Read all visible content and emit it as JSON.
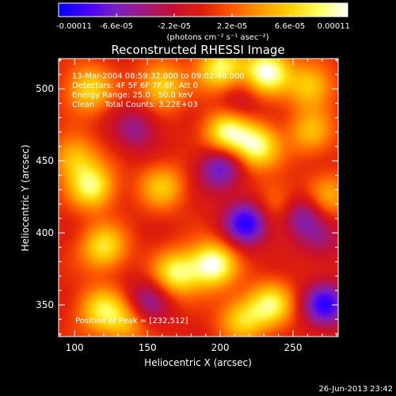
{
  "colorbar": {
    "tick_labels": [
      "-0.00011",
      "-6.6e-05",
      "-2.2e-05",
      "2.2e-05",
      "6.6e-05",
      "0.00011"
    ],
    "tick_values": [
      -0.00011,
      -6.6e-05,
      -2.2e-05,
      2.2e-05,
      6.6e-05,
      0.00011
    ],
    "range": [
      -0.00011,
      0.00011
    ],
    "units_label": "(photons cm⁻² s⁻¹ asec⁻²)",
    "colors": [
      "#0000ff",
      "#4b00ff",
      "#7a1fc0",
      "#a21a7a",
      "#c8102e",
      "#e0200a",
      "#ff5a00",
      "#ff9a00",
      "#ffd000",
      "#ffff60",
      "#ffffff"
    ]
  },
  "chart_data": {
    "type": "heatmap",
    "title": "Reconstructed RHESSI Image",
    "xlabel": "Heliocentric X (arcsec)",
    "ylabel": "Heliocentric Y (arcsec)",
    "xlim": [
      89,
      281
    ],
    "ylim": [
      328,
      521
    ],
    "x_ticks": [
      100,
      150,
      200,
      250
    ],
    "y_ticks": [
      350,
      400,
      450,
      500
    ],
    "annotations": [
      "13-Mar-2004 08:59:32.000 to 09:02:48.000",
      "Detectors: 4F 5F 6F 7F 8F, Att 0",
      "Energy Range: 25.0 - 50.0 keV",
      "Clean    Total Counts: 3.22E+03"
    ],
    "peak_label": "Position of Peak = [232,512]",
    "peak_position": [
      232,
      512
    ],
    "sources": [
      {
        "x": 232,
        "y": 512,
        "value": 1.0
      },
      {
        "x": 200,
        "y": 514,
        "value": 0.8
      },
      {
        "x": 160,
        "y": 502,
        "value": 0.65
      },
      {
        "x": 110,
        "y": 500,
        "value": 0.65
      },
      {
        "x": 262,
        "y": 502,
        "value": 0.6
      },
      {
        "x": 205,
        "y": 470,
        "value": 0.9
      },
      {
        "x": 225,
        "y": 460,
        "value": 0.85
      },
      {
        "x": 262,
        "y": 470,
        "value": 0.5
      },
      {
        "x": 112,
        "y": 432,
        "value": 0.8
      },
      {
        "x": 100,
        "y": 452,
        "value": 0.55
      },
      {
        "x": 160,
        "y": 432,
        "value": 0.55
      },
      {
        "x": 240,
        "y": 420,
        "value": 0.4
      },
      {
        "x": 275,
        "y": 425,
        "value": 0.45
      },
      {
        "x": 195,
        "y": 378,
        "value": 1.0
      },
      {
        "x": 170,
        "y": 372,
        "value": 0.8
      },
      {
        "x": 120,
        "y": 390,
        "value": 0.7
      },
      {
        "x": 235,
        "y": 350,
        "value": 0.75
      },
      {
        "x": 215,
        "y": 340,
        "value": 0.6
      },
      {
        "x": 118,
        "y": 347,
        "value": 0.65
      },
      {
        "x": 135,
        "y": 338,
        "value": 0.5
      },
      {
        "x": 212,
        "y": 488,
        "value": -0.3
      },
      {
        "x": 142,
        "y": 472,
        "value": -0.45
      },
      {
        "x": 200,
        "y": 445,
        "value": -0.7
      },
      {
        "x": 218,
        "y": 407,
        "value": -0.9
      },
      {
        "x": 255,
        "y": 412,
        "value": -0.6
      },
      {
        "x": 150,
        "y": 352,
        "value": -0.5
      },
      {
        "x": 272,
        "y": 350,
        "value": -0.85
      },
      {
        "x": 270,
        "y": 395,
        "value": -0.3
      }
    ]
  },
  "footer": {
    "timestamp": "26-Jun-2013 23:42"
  }
}
